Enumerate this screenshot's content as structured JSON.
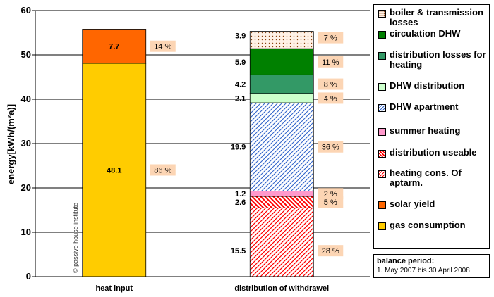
{
  "chart_data": {
    "type": "bar",
    "stacked": true,
    "ylabel": "energy[kWh/(m²a)]",
    "ylim": [
      0,
      60
    ],
    "yticks": [
      0,
      10,
      20,
      30,
      40,
      50,
      60
    ],
    "grid": true,
    "categories": [
      "heat input",
      "distribution of withdrawel"
    ],
    "bars": [
      {
        "category": "heat input",
        "segments": [
          {
            "name": "gas consumption",
            "value": 48.1,
            "label": "48.1",
            "percent": "86 %",
            "color": "#FFCC00",
            "pattern": "solid"
          },
          {
            "name": "solar yield",
            "value": 7.7,
            "label": "7.7",
            "percent": "14 %",
            "color": "#FF6600",
            "pattern": "solid"
          }
        ]
      },
      {
        "category": "distribution of withdrawel",
        "segments": [
          {
            "name": "heating cons. Of aptarm.",
            "value": 15.5,
            "label": "15.5",
            "percent": "28 %",
            "color": "#FF0000",
            "pattern": "diag-red"
          },
          {
            "name": "distribution useable",
            "value": 2.6,
            "label": "2.6",
            "percent": "5 %",
            "color": "#FF0000",
            "pattern": "diag-red-bold"
          },
          {
            "name": "summer heating",
            "value": 1.2,
            "label": "1.2",
            "percent": "2 %",
            "color": "#FF99CC",
            "pattern": "solid"
          },
          {
            "name": "DHW apartment",
            "value": 19.9,
            "label": "19.9",
            "percent": "36 %",
            "color": "#3366CC",
            "pattern": "diag-blue"
          },
          {
            "name": "DHW distribution",
            "value": 2.1,
            "label": "2.1",
            "percent": "4 %",
            "color": "#CCFFCC",
            "pattern": "solid"
          },
          {
            "name": "distribution losses for heating",
            "value": 4.2,
            "label": "4.2",
            "percent": "8 %",
            "color": "#339966",
            "pattern": "solid"
          },
          {
            "name": "circulation DHW",
            "value": 5.9,
            "label": "5.9",
            "percent": "11 %",
            "color": "#008000",
            "pattern": "solid"
          },
          {
            "name": "boiler & transmission losses",
            "value": 3.9,
            "label": "3.9",
            "percent": "7 %",
            "color": "#FFEEE0",
            "pattern": "dots"
          }
        ]
      }
    ],
    "watermark": "© passive house institute",
    "legend_position": "right",
    "legend": [
      {
        "name": "boiler & transmission losses",
        "color": "#FFEEE0",
        "pattern": "dots"
      },
      {
        "name": "circulation DHW",
        "color": "#008000",
        "pattern": "solid"
      },
      {
        "name": "distribution losses for heating",
        "color": "#339966",
        "pattern": "solid"
      },
      {
        "name": "DHW distribution",
        "color": "#CCFFCC",
        "pattern": "solid"
      },
      {
        "name": "DHW apartment",
        "color": "#3366CC",
        "pattern": "diag-blue"
      },
      {
        "name": "summer heating",
        "color": "#FF99CC",
        "pattern": "solid"
      },
      {
        "name": "distribution useable",
        "color": "#FF0000",
        "pattern": "diag-red-bold"
      },
      {
        "name": "heating cons. Of aptarm.",
        "color": "#FF0000",
        "pattern": "diag-red"
      },
      {
        "name": "solar yield",
        "color": "#FF6600",
        "pattern": "solid"
      },
      {
        "name": "gas consumption",
        "color": "#FFCC00",
        "pattern": "solid"
      }
    ],
    "note": {
      "title": "balance period:",
      "range": "1. May 2007 bis 30 April 2008"
    },
    "percent_label_bg": "#FCD5B4"
  }
}
